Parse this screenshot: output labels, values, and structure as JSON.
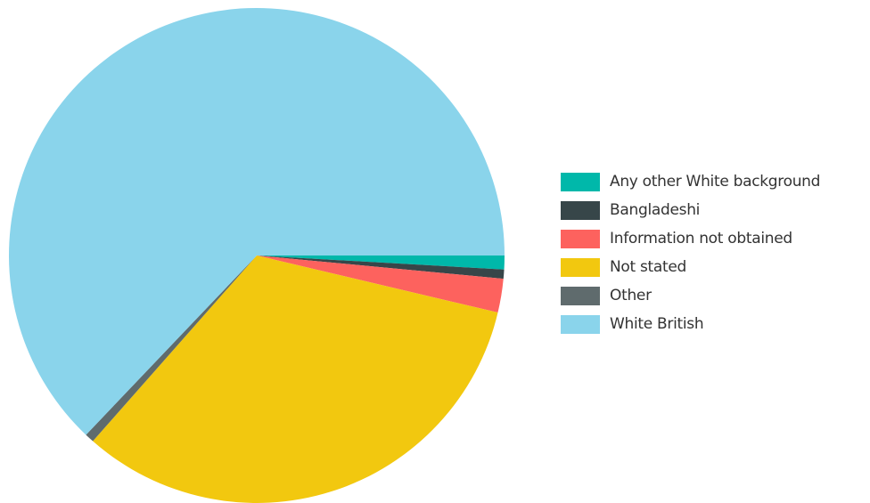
{
  "chart_data": {
    "type": "pie",
    "title": "",
    "start_angle_deg": 0,
    "direction": "clockwise",
    "legend_position": "right",
    "slices": [
      {
        "label": "Any other White background",
        "value": 0.9,
        "color": "#00B8AA"
      },
      {
        "label": "Bangladeshi",
        "value": 0.6,
        "color": "#374649"
      },
      {
        "label": "Information not obtained",
        "value": 2.2,
        "color": "#FD625E"
      },
      {
        "label": "Not stated",
        "value": 32.8,
        "color": "#F2C80F"
      },
      {
        "label": "Other",
        "value": 0.6,
        "color": "#5F6B6D"
      },
      {
        "label": "White British",
        "value": 62.9,
        "color": "#8AD4EB"
      }
    ]
  }
}
